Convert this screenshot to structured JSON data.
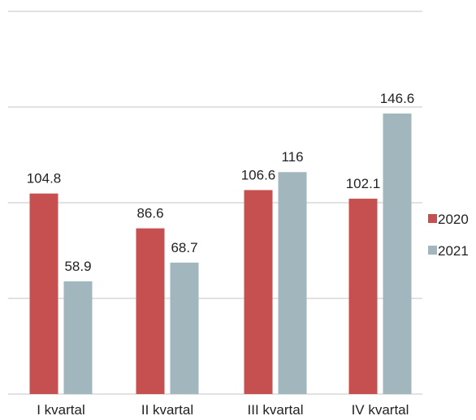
{
  "chart_data": {
    "type": "bar",
    "title": "",
    "xlabel": "",
    "ylabel": "",
    "categories": [
      "I kvartal",
      "II kvartal",
      "III kvartal",
      "IV kvartal"
    ],
    "series": [
      {
        "name": "2020",
        "values": [
          104.8,
          86.6,
          106.6,
          102.1
        ],
        "labels": [
          "104.8",
          "86.6",
          "106.6",
          "102.1"
        ],
        "color": "#c65050"
      },
      {
        "name": "2021",
        "values": [
          58.9,
          68.7,
          116,
          146.6
        ],
        "labels": [
          "58.9",
          "68.7",
          "116",
          "146.6"
        ],
        "color": "#a2b6bd"
      }
    ],
    "ylim": [
      0,
      200
    ],
    "grid": true,
    "legend": "right"
  }
}
